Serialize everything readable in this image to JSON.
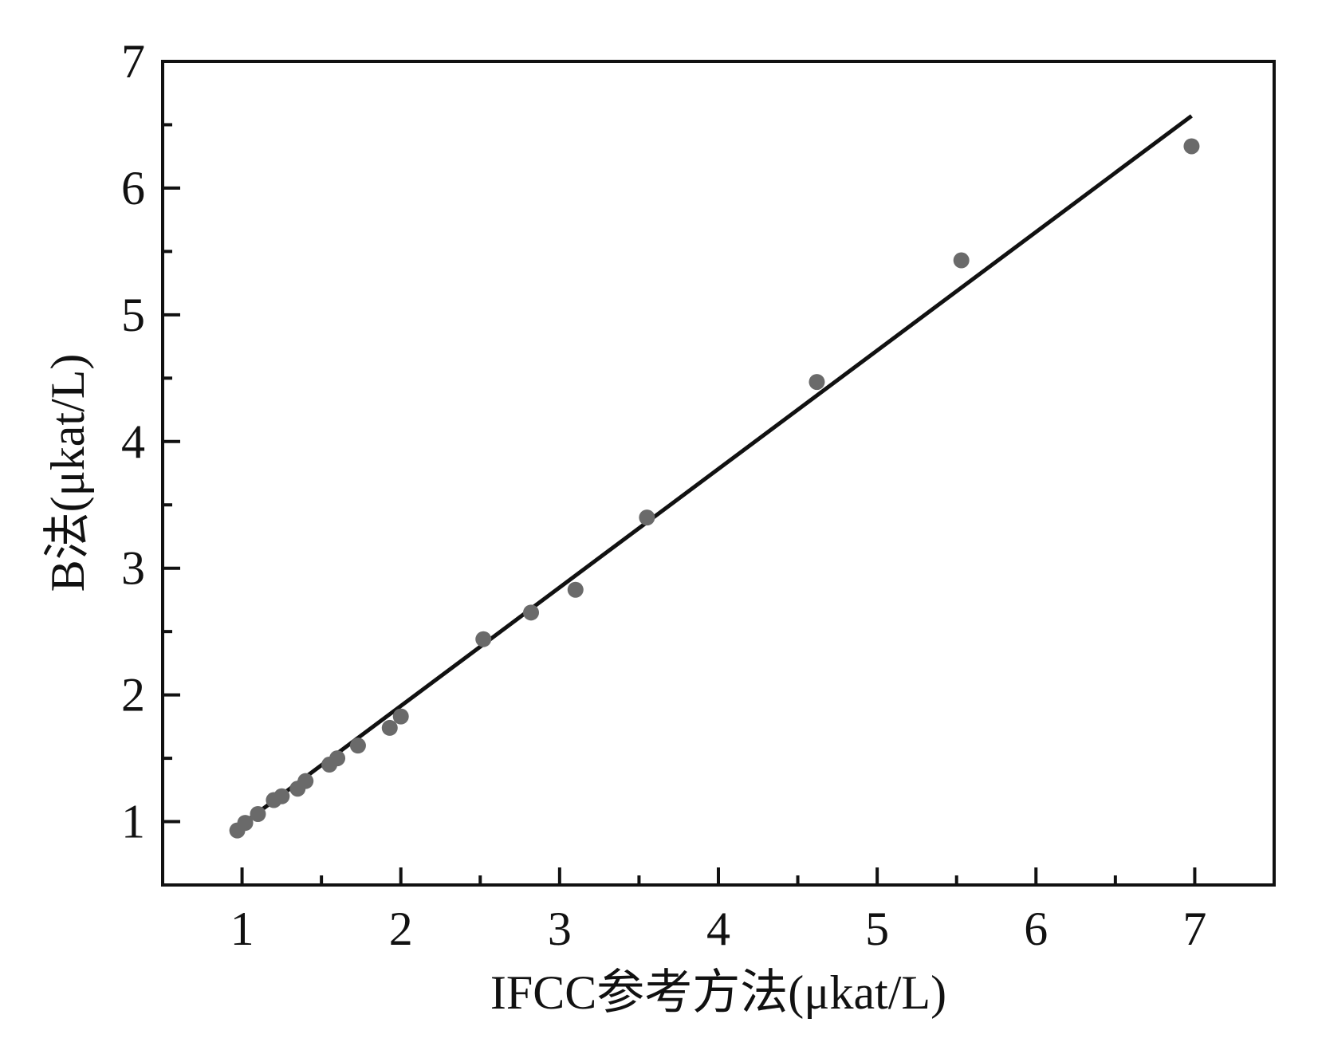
{
  "chart_data": {
    "type": "scatter",
    "x_label": "IFCC参考方法(μkat/L)",
    "y_label": "B法(μkat/L)",
    "x": [
      0.97,
      1.02,
      1.1,
      1.2,
      1.25,
      1.35,
      1.4,
      1.55,
      1.6,
      1.73,
      1.93,
      2.0,
      2.52,
      2.82,
      3.1,
      3.55,
      4.62,
      5.53,
      6.98
    ],
    "values": [
      0.93,
      0.99,
      1.06,
      1.17,
      1.2,
      1.26,
      1.32,
      1.45,
      1.5,
      1.6,
      1.74,
      1.83,
      2.44,
      2.65,
      2.83,
      3.4,
      4.47,
      5.43,
      6.33
    ],
    "color": "#6a6a6a",
    "fit": {
      "x": [
        0.97,
        6.98
      ],
      "y": [
        0.95,
        6.57
      ],
      "color": "#111111"
    },
    "xlim": [
      0.5,
      7.5
    ],
    "ylim": [
      0.5,
      7
    ],
    "xticks": [
      1,
      2,
      3,
      4,
      5,
      6,
      7
    ],
    "yticks": [
      1,
      2,
      3,
      4,
      5,
      6,
      7
    ],
    "xticks_minor": [
      1.5,
      2.5,
      3.5,
      4.5,
      5.5,
      6.5
    ],
    "yticks_minor": [
      1.5,
      2.5,
      3.5,
      4.5,
      5.5,
      6.5
    ]
  }
}
